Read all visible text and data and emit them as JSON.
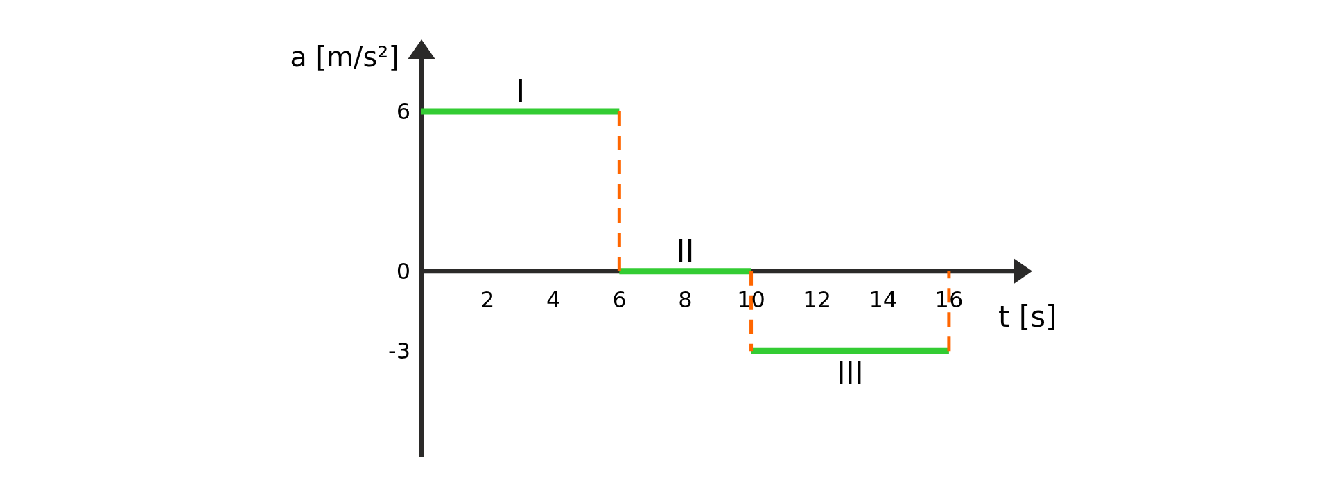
{
  "chart_data": {
    "type": "line",
    "xlabel": "t [s]",
    "ylabel": "a [m/s²]",
    "xlim": [
      0,
      18
    ],
    "xticks": [
      2,
      4,
      6,
      8,
      10,
      12,
      14,
      16
    ],
    "ylim": [
      -7,
      8
    ],
    "yticks": [
      -3,
      0,
      6
    ],
    "series": [
      {
        "color": "#33cc33",
        "x": [
          0,
          6
        ],
        "values": [
          6,
          6
        ]
      },
      {
        "color": "#33cc33",
        "x": [
          6,
          10
        ],
        "values": [
          0,
          0
        ]
      },
      {
        "color": "#33cc33",
        "x": [
          10,
          16
        ],
        "values": [
          -3,
          -3
        ]
      },
      {
        "color": "#ff6600",
        "line_style": "dashed",
        "x": [
          6,
          6
        ],
        "values": [
          6,
          0
        ]
      },
      {
        "color": "#ff6600",
        "line_style": "dashed",
        "x": [
          10,
          10
        ],
        "values": [
          0,
          -3
        ]
      },
      {
        "color": "#ff6600",
        "line_style": "dashed",
        "x": [
          16,
          16
        ],
        "values": [
          -3,
          0
        ]
      }
    ],
    "annotations": [
      {
        "text": "I",
        "x": 3,
        "y": 6
      },
      {
        "text": "II",
        "x": 8,
        "y": 0
      },
      {
        "text": "III",
        "x": 13,
        "y": -3
      }
    ]
  }
}
